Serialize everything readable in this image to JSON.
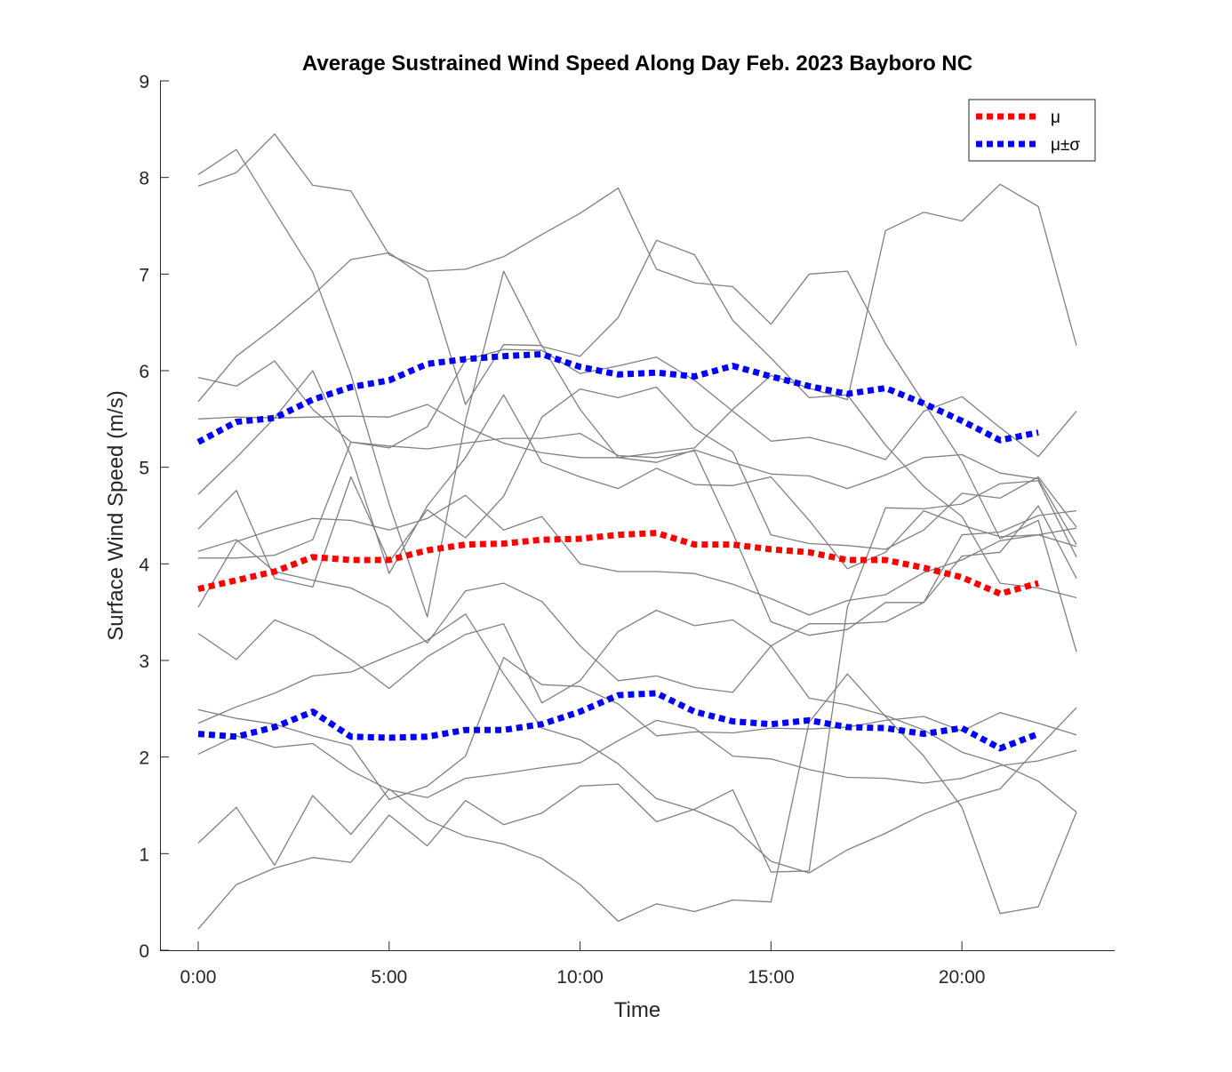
{
  "chart_data": {
    "type": "line",
    "title": "Average Sustrained Wind Speed Along Day Feb. 2023 Bayboro NC",
    "xlabel": "Time",
    "ylabel": "Surface Wind Speed (m/s)",
    "xlim": [
      -1,
      24
    ],
    "ylim": [
      0,
      9
    ],
    "x_ticks": [
      0,
      5,
      10,
      15,
      20
    ],
    "x_tick_labels": [
      "0:00",
      "5:00",
      "10:00",
      "15:00",
      "20:00"
    ],
    "y_ticks": [
      0,
      1,
      2,
      3,
      4,
      5,
      6,
      7,
      8,
      9
    ],
    "y_tick_labels": [
      "0",
      "1",
      "2",
      "3",
      "4",
      "5",
      "6",
      "7",
      "8",
      "9"
    ],
    "grid": false,
    "legend_position": "top-right",
    "colors": {
      "daily": "#808080",
      "mean": "#ff0000",
      "band": "#0000ff"
    },
    "daily_series": [
      [
        8.03,
        8.29,
        7.65,
        7.02,
        5.96,
        4.62,
        3.45,
        5.48,
        7.03,
        6.25,
        6.15,
        6.55,
        7.35,
        7.2,
        6.52,
        6.13,
        5.72,
        5.75,
        5.23,
        4.8,
        4.49,
        3.8,
        3.75,
        3.65
      ],
      [
        7.91,
        8.05,
        8.45,
        7.92,
        7.86,
        7.2,
        7.03,
        7.05,
        7.18,
        7.41,
        7.63,
        7.89,
        7.05,
        6.91,
        6.87,
        6.48,
        7.0,
        7.03,
        6.28,
        5.67,
        5.06,
        4.26,
        4.45,
        3.09
      ],
      [
        5.68,
        6.15,
        6.45,
        6.78,
        7.15,
        7.22,
        6.95,
        5.65,
        6.27,
        6.26,
        5.6,
        5.1,
        5.15,
        5.2,
        5.6,
        5.95,
        5.82,
        5.7,
        7.45,
        7.64,
        7.55,
        7.93,
        7.7,
        6.26
      ],
      [
        5.93,
        5.84,
        6.1,
        5.6,
        5.26,
        5.22,
        5.19,
        5.25,
        5.3,
        5.3,
        5.35,
        5.12,
        5.1,
        5.17,
        4.32,
        3.4,
        3.26,
        3.32,
        3.6,
        3.6,
        4.3,
        4.33,
        4.5,
        4.55
      ],
      [
        5.5,
        5.52,
        5.51,
        5.52,
        5.53,
        5.52,
        5.65,
        5.42,
        5.25,
        5.15,
        5.1,
        5.1,
        5.05,
        5.18,
        5.05,
        4.93,
        4.91,
        4.78,
        4.92,
        5.1,
        5.13,
        4.94,
        4.88,
        4.2
      ],
      [
        4.72,
        5.1,
        5.51,
        6.0,
        5.12,
        3.9,
        4.6,
        5.1,
        5.75,
        5.05,
        4.9,
        4.78,
        4.99,
        4.82,
        4.81,
        4.9,
        4.45,
        3.95,
        4.12,
        4.55,
        4.4,
        4.28,
        4.3,
        4.37
      ],
      [
        4.36,
        4.76,
        3.85,
        3.76,
        4.9,
        4.02,
        4.56,
        4.27,
        4.7,
        5.52,
        5.81,
        5.72,
        5.83,
        5.4,
        5.16,
        4.3,
        4.21,
        4.19,
        4.15,
        4.35,
        4.73,
        4.68,
        4.9,
        4.38
      ],
      [
        4.06,
        4.06,
        4.09,
        4.25,
        5.26,
        5.2,
        5.42,
        6.11,
        6.22,
        6.21,
        5.97,
        6.05,
        6.14,
        5.9,
        5.58,
        5.27,
        5.31,
        5.21,
        5.08,
        5.58,
        5.73,
        5.41,
        5.11,
        5.58
      ],
      [
        4.13,
        4.25,
        3.92,
        3.83,
        3.75,
        3.55,
        3.18,
        3.72,
        3.8,
        3.61,
        3.15,
        2.79,
        2.84,
        2.72,
        2.67,
        3.15,
        3.38,
        3.38,
        3.4,
        3.6,
        4.08,
        4.12,
        4.6,
        3.85
      ],
      [
        3.55,
        4.23,
        4.36,
        4.47,
        4.45,
        4.35,
        4.47,
        4.71,
        4.35,
        4.49,
        4.0,
        3.92,
        3.92,
        3.9,
        3.79,
        3.64,
        3.47,
        3.62,
        3.68,
        3.91,
        4.04,
        4.24,
        4.3,
        4.18
      ],
      [
        3.28,
        3.01,
        3.42,
        3.26,
        3.01,
        2.71,
        3.04,
        3.27,
        3.38,
        2.56,
        2.79,
        3.3,
        3.52,
        3.36,
        3.42,
        3.15,
        2.61,
        2.54,
        2.43,
        2.28,
        2.05,
        1.93,
        1.75,
        1.43
      ],
      [
        2.49,
        2.4,
        2.34,
        2.22,
        2.12,
        1.56,
        1.7,
        2.01,
        3.03,
        2.75,
        2.73,
        2.55,
        2.22,
        2.26,
        2.25,
        2.3,
        2.29,
        2.31,
        2.38,
        2.42,
        2.27,
        2.46,
        2.35,
        2.23
      ],
      [
        2.35,
        2.52,
        2.66,
        2.84,
        2.88,
        3.05,
        3.21,
        3.48,
        2.86,
        2.3,
        2.18,
        1.93,
        1.57,
        1.45,
        1.28,
        0.92,
        0.8,
        1.04,
        1.21,
        1.41,
        1.56,
        1.67,
        2.1,
        2.51
      ],
      [
        2.03,
        2.22,
        2.1,
        2.14,
        1.86,
        1.66,
        1.58,
        1.78,
        1.83,
        1.89,
        1.94,
        2.17,
        2.38,
        2.3,
        2.01,
        1.98,
        1.87,
        1.79,
        1.78,
        1.73,
        1.78,
        1.91,
        1.96,
        2.07
      ],
      [
        1.11,
        1.48,
        0.88,
        1.6,
        1.2,
        1.67,
        1.35,
        1.18,
        1.1,
        0.95,
        0.68,
        0.3,
        0.48,
        0.4,
        0.52,
        0.5,
        2.36,
        2.86,
        2.42,
        2.01,
        1.48,
        0.38,
        0.45,
        1.43
      ],
      [
        0.22,
        0.68,
        0.85,
        0.96,
        0.91,
        1.4,
        1.08,
        1.55,
        1.3,
        1.42,
        1.7,
        1.72,
        1.33,
        1.46,
        1.66,
        0.81,
        0.82,
        3.55,
        4.58,
        4.57,
        4.62,
        4.83,
        4.86,
        4.07
      ]
    ],
    "series": [
      {
        "name": "μ",
        "style": "dotted",
        "color": "#ff0000",
        "values": [
          3.74,
          3.83,
          3.92,
          4.07,
          4.04,
          4.04,
          4.14,
          4.2,
          4.21,
          4.25,
          4.26,
          4.3,
          4.32,
          4.2,
          4.2,
          4.15,
          4.12,
          4.04,
          4.04,
          3.96,
          3.86,
          3.69,
          3.8
        ]
      },
      {
        "name": "μ±σ",
        "style": "dotted",
        "color": "#0000ff",
        "values": [
          5.26,
          5.47,
          5.51,
          5.7,
          5.83,
          5.9,
          6.07,
          6.12,
          6.15,
          6.17,
          6.04,
          5.96,
          5.98,
          5.94,
          6.05,
          5.94,
          5.84,
          5.76,
          5.82,
          5.66,
          5.48,
          5.28,
          5.36
        ]
      },
      {
        "name": "",
        "style": "dotted",
        "color": "#0000ff",
        "values": [
          2.24,
          2.21,
          2.31,
          2.47,
          2.21,
          2.2,
          2.21,
          2.28,
          2.28,
          2.34,
          2.47,
          2.64,
          2.66,
          2.47,
          2.37,
          2.34,
          2.38,
          2.31,
          2.3,
          2.24,
          2.3,
          2.09,
          2.24
        ]
      }
    ]
  }
}
